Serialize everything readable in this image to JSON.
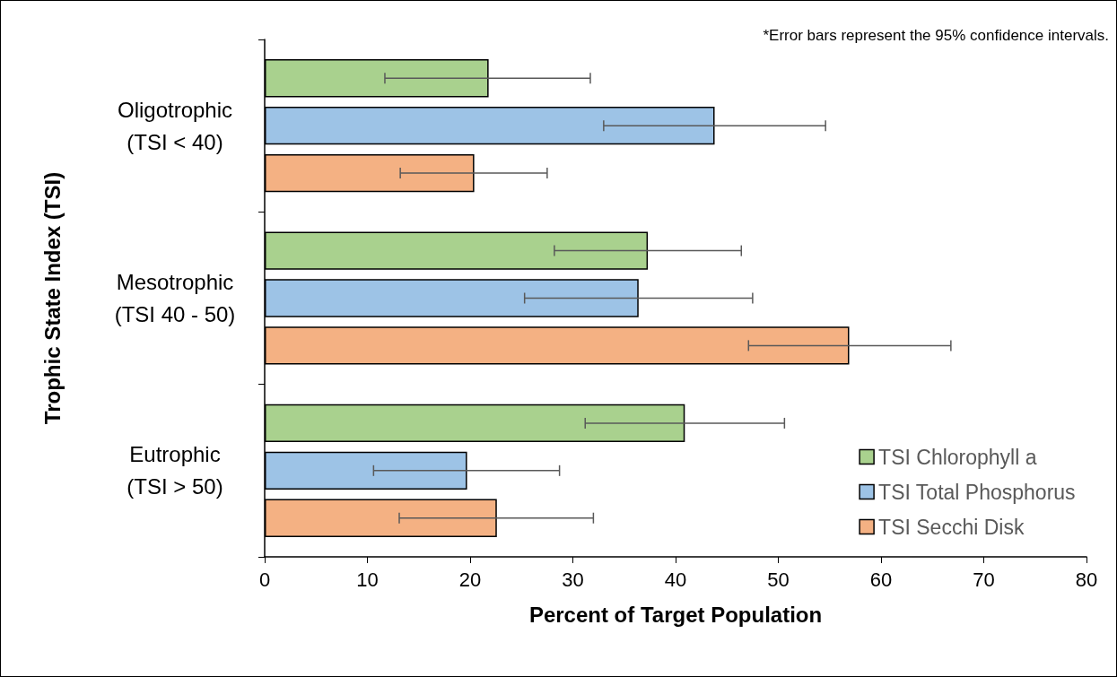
{
  "chart_data": {
    "type": "bar",
    "orientation": "horizontal",
    "xlabel": "Percent of Target Population",
    "ylabel": "Trophic State Index (TSI)",
    "categories": [
      "Oligotrophic\n(TSI < 40)",
      "Mesotrophic\n(TSI 40 - 50)",
      "Eutrophic\n(TSI > 50)"
    ],
    "series": [
      {
        "name": "TSI Chlorophyll a",
        "color": "#a9d18e",
        "values": [
          21.8,
          37.3,
          40.9
        ],
        "errors": [
          [
            11.7,
            31.7
          ],
          [
            28.2,
            46.4
          ],
          [
            31.2,
            50.6
          ]
        ]
      },
      {
        "name": "TSI Total Phosphorus",
        "color": "#9dc3e6",
        "values": [
          43.8,
          36.4,
          19.7
        ],
        "errors": [
          [
            33.0,
            54.6
          ],
          [
            25.3,
            47.5
          ],
          [
            10.6,
            28.7
          ]
        ]
      },
      {
        "name": "TSI Secchi Disk",
        "color": "#f4b183",
        "values": [
          20.4,
          56.9,
          22.6
        ],
        "errors": [
          [
            13.2,
            27.5
          ],
          [
            47.1,
            66.8
          ],
          [
            13.1,
            32.0
          ]
        ]
      }
    ],
    "xlim": [
      0,
      80
    ],
    "xticks": [
      0,
      10,
      20,
      30,
      40,
      50,
      60,
      70,
      80
    ],
    "grid": false,
    "legend": "bottom right",
    "annotations": [
      "*Error bars represent the 95% confidence intervals."
    ]
  }
}
